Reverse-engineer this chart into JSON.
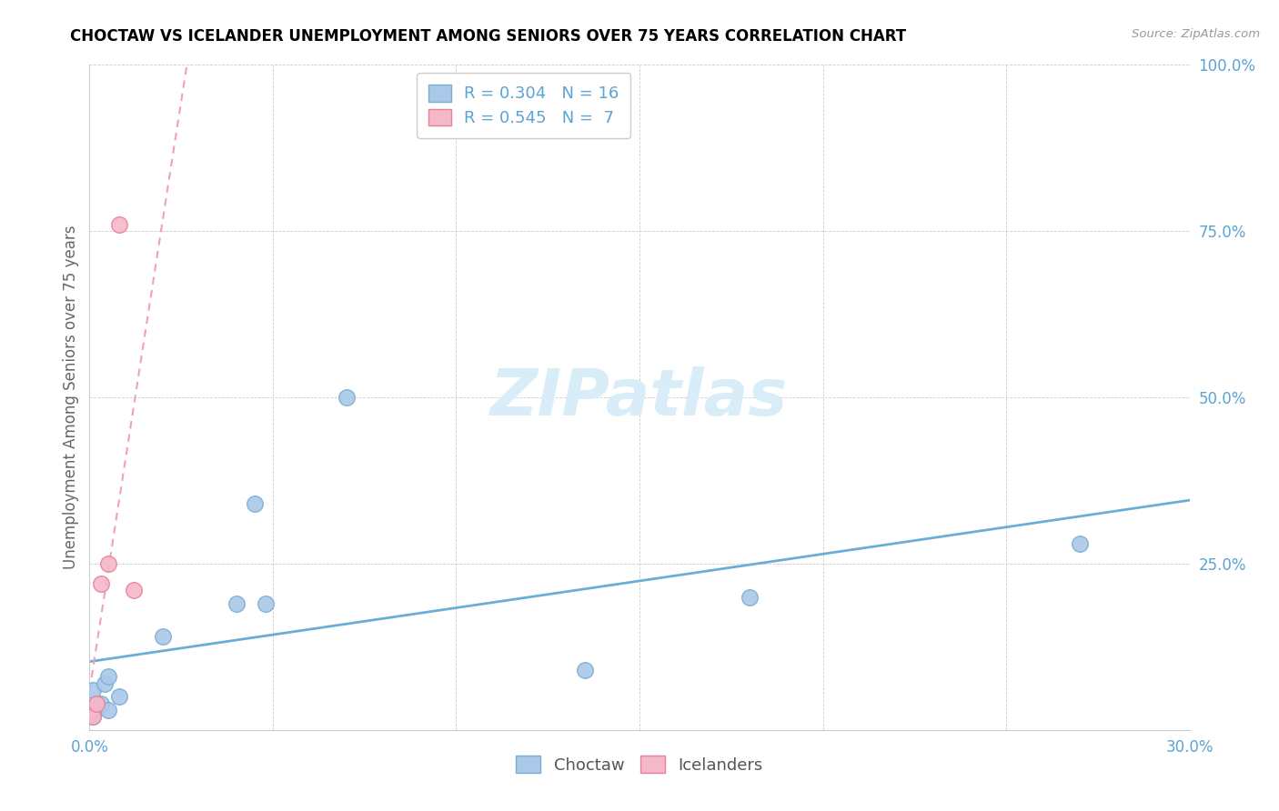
{
  "title": "CHOCTAW VS ICELANDER UNEMPLOYMENT AMONG SENIORS OVER 75 YEARS CORRELATION CHART",
  "source": "Source: ZipAtlas.com",
  "ylabel_label": "Unemployment Among Seniors over 75 years",
  "xlim": [
    0.0,
    0.3
  ],
  "ylim": [
    0.0,
    1.0
  ],
  "xticks": [
    0.0,
    0.05,
    0.1,
    0.15,
    0.2,
    0.25,
    0.3
  ],
  "yticks": [
    0.25,
    0.5,
    0.75,
    1.0
  ],
  "ytick_labels": [
    "25.0%",
    "50.0%",
    "75.0%",
    "100.0%"
  ],
  "xtick_labels": [
    "0.0%",
    "",
    "",
    "",
    "",
    "",
    "30.0%"
  ],
  "choctaw_color": "#aac8e8",
  "icelander_color": "#f5b8c8",
  "choctaw_edge_color": "#7aadd4",
  "icelander_edge_color": "#e8809a",
  "trend_choctaw_color": "#6aaed6",
  "trend_icelander_color": "#f0a0b8",
  "watermark_color": "#d8edf8",
  "legend_R_choctaw": "R = 0.304",
  "legend_N_choctaw": "N = 16",
  "legend_R_icelander": "R = 0.545",
  "legend_N_icelander": "N =  7",
  "choctaw_x": [
    0.001,
    0.001,
    0.002,
    0.003,
    0.004,
    0.005,
    0.005,
    0.008,
    0.02,
    0.04,
    0.045,
    0.048,
    0.07,
    0.135,
    0.18,
    0.27
  ],
  "choctaw_y": [
    0.02,
    0.06,
    0.04,
    0.04,
    0.07,
    0.08,
    0.03,
    0.05,
    0.14,
    0.19,
    0.34,
    0.19,
    0.5,
    0.09,
    0.2,
    0.28
  ],
  "icelander_x": [
    0.0005,
    0.001,
    0.002,
    0.003,
    0.005,
    0.008,
    0.012
  ],
  "icelander_y": [
    0.03,
    0.02,
    0.04,
    0.22,
    0.25,
    0.76,
    0.21
  ],
  "marker_size": 160,
  "tick_color": "#5ba3d4",
  "axis_label_color": "#666666"
}
